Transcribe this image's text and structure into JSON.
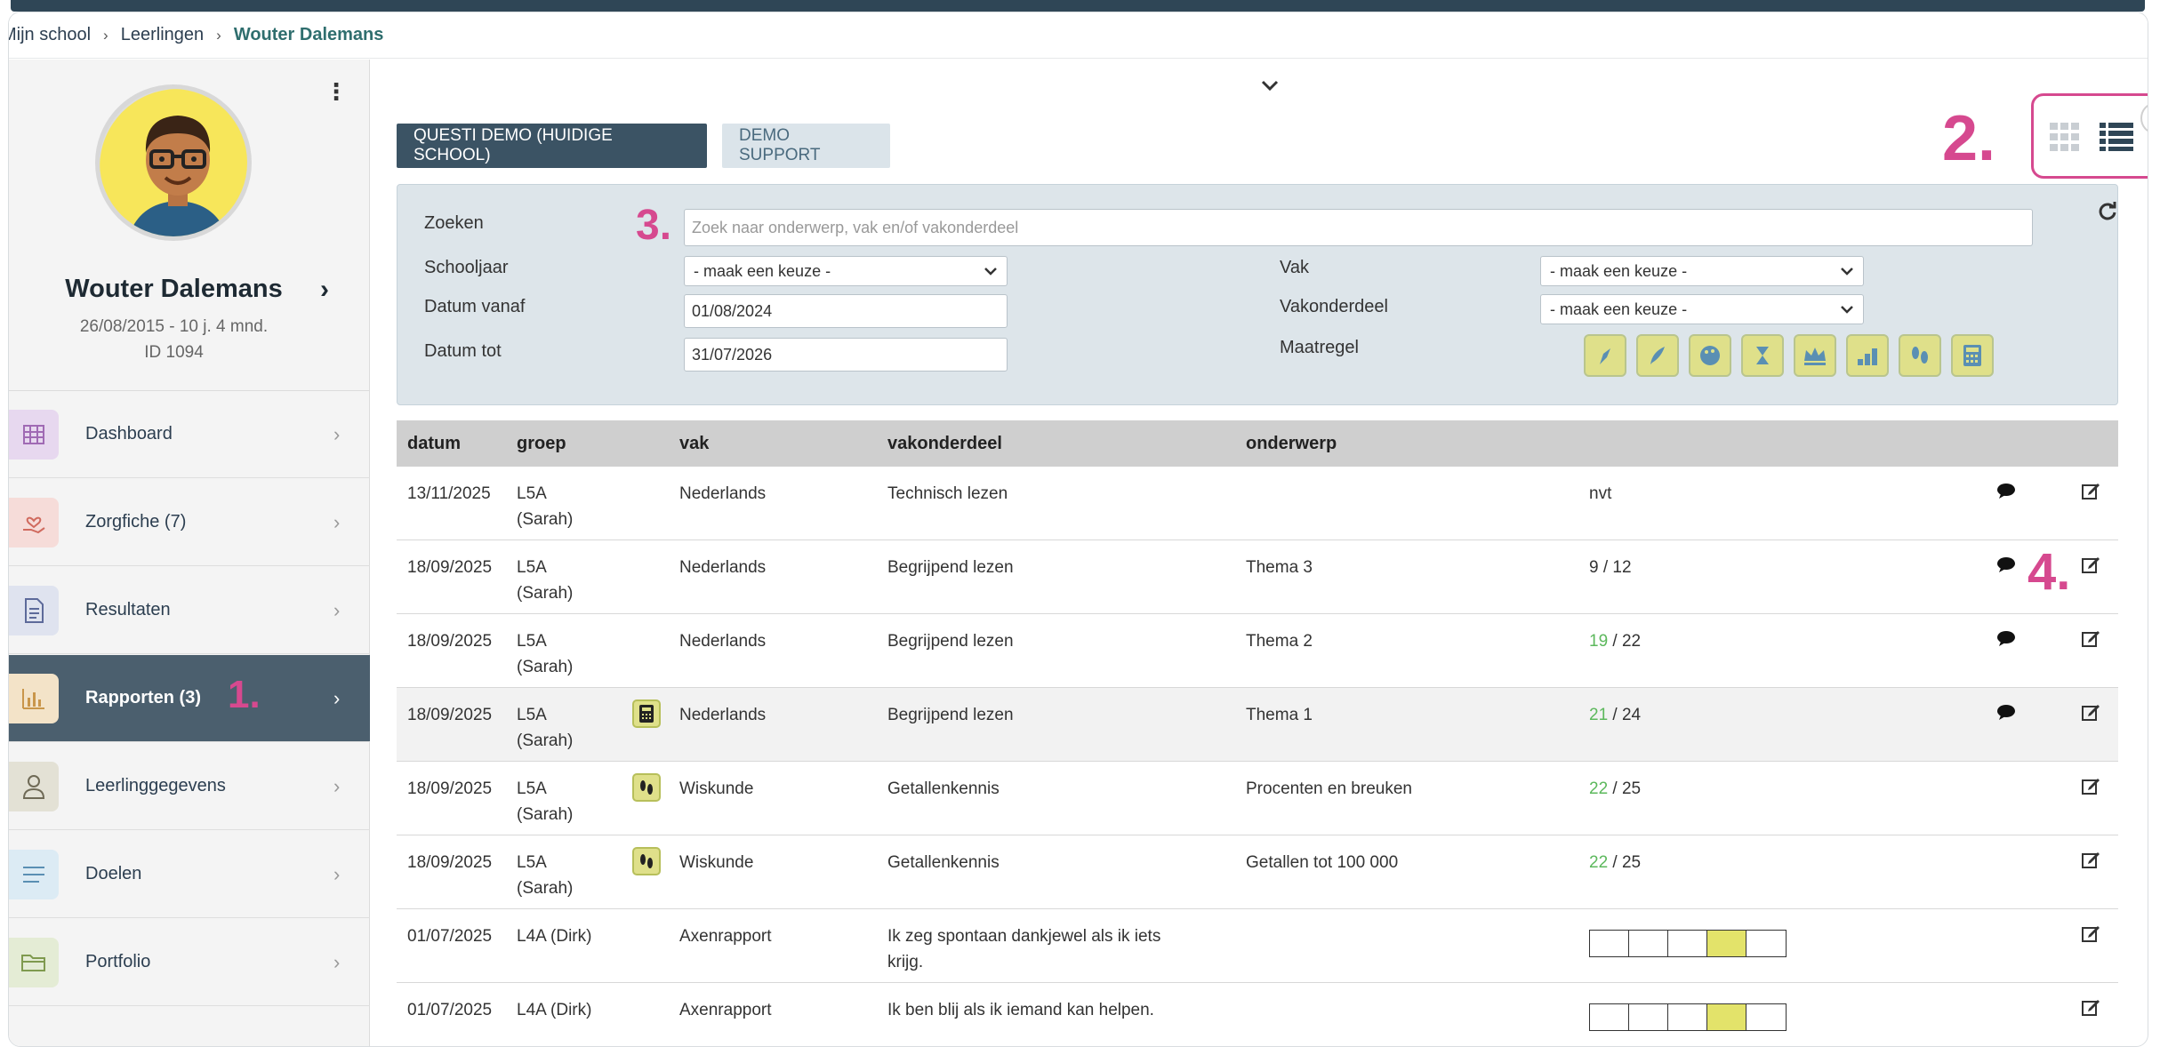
{
  "breadcrumb": {
    "items": [
      "Mijn school",
      "Leerlingen"
    ],
    "current": "Wouter Dalemans"
  },
  "student": {
    "name": "Wouter Dalemans",
    "birth": "26/08/2015 - 10 j. 4 mnd.",
    "id": "ID 1094"
  },
  "nav": [
    {
      "label": "Dashboard",
      "icon": "grid-icon",
      "color": "#e7d8ef"
    },
    {
      "label": "Zorgfiche  (7)",
      "icon": "hand-heart-icon",
      "color": "#f6dcd9"
    },
    {
      "label": "Resultaten",
      "icon": "document-icon",
      "color": "#dfe3ef"
    },
    {
      "label": "Rapporten  (3)",
      "icon": "bar-chart-icon",
      "color": "#f3e3c8"
    },
    {
      "label": "Leerlinggegevens",
      "icon": "user-icon",
      "color": "#e3e1d5"
    },
    {
      "label": "Doelen",
      "icon": "list-icon",
      "color": "#dcebf4"
    },
    {
      "label": "Portfolio",
      "icon": "folder-icon",
      "color": "#e4ecd5"
    }
  ],
  "annotations": {
    "a1": "1.",
    "a2": "2.",
    "a3": "3.",
    "a4": "4."
  },
  "tabs": {
    "school": "QUESTI DEMO (HUIDIGE SCHOOL)",
    "support": "DEMO SUPPORT"
  },
  "filters": {
    "search_label": "Zoeken",
    "search_placeholder": "Zoek naar onderwerp, vak en/of vakonderdeel",
    "schooljaar_label": "Schooljaar",
    "schooljaar_value": "- maak een keuze -",
    "vanaf_label": "Datum vanaf",
    "vanaf_value": "01/08/2024",
    "tot_label": "Datum tot",
    "tot_value": "31/07/2026",
    "vak_label": "Vak",
    "vak_value": "- maak een keuze -",
    "vakonderdeel_label": "Vakonderdeel",
    "vakonderdeel_value": "- maak een keuze -",
    "maatregel_label": "Maatregel"
  },
  "table": {
    "headers": {
      "datum": "datum",
      "groep": "groep",
      "vak": "vak",
      "vakonderdeel": "vakonderdeel",
      "onderwerp": "onderwerp"
    },
    "rows": [
      {
        "datum": "13/11/2025",
        "groep1": "L5A",
        "groep2": "(Sarah)",
        "vak": "Nederlands",
        "vakonderdeel": "Technisch lezen",
        "onderwerp": "",
        "result": "nvt"
      },
      {
        "datum": "18/09/2025",
        "groep1": "L5A",
        "groep2": "(Sarah)",
        "vak": "Nederlands",
        "vakonderdeel": "Begrijpend lezen",
        "onderwerp": "Thema 3",
        "score": "9",
        "max": "12"
      },
      {
        "datum": "18/09/2025",
        "groep1": "L5A",
        "groep2": "(Sarah)",
        "vak": "Nederlands",
        "vakonderdeel": "Begrijpend lezen",
        "onderwerp": "Thema 2",
        "score": "19",
        "max": "22"
      },
      {
        "datum": "18/09/2025",
        "groep1": "L5A",
        "groep2": "(Sarah)",
        "vak": "Nederlands",
        "vakonderdeel": "Begrijpend lezen",
        "onderwerp": "Thema 1",
        "score": "21",
        "max": "24"
      },
      {
        "datum": "18/09/2025",
        "groep1": "L5A",
        "groep2": "(Sarah)",
        "vak": "Wiskunde",
        "vakonderdeel": "Getallenkennis",
        "onderwerp": "Procenten en breuken",
        "score": "22",
        "max": "25"
      },
      {
        "datum": "18/09/2025",
        "groep1": "L5A",
        "groep2": "(Sarah)",
        "vak": "Wiskunde",
        "vakonderdeel": "Getallenkennis",
        "onderwerp": "Getallen tot 100 000",
        "score": "22",
        "max": "25"
      },
      {
        "datum": "01/07/2025",
        "groep1": "L4A (Dirk)",
        "groep2": "",
        "vak": "Axenrapport",
        "vakonderdeel": "Ik zeg spontaan dankjewel als ik iets",
        "vakonderdeel2": "krijg.",
        "onderwerp": "",
        "scale_level": 4
      },
      {
        "datum": "01/07/2025",
        "groep1": "L4A (Dirk)",
        "groep2": "",
        "vak": "Axenrapport",
        "vakonderdeel": "Ik ben blij als ik iemand kan helpen.",
        "onderwerp": "",
        "scale_level": 4
      }
    ]
  }
}
